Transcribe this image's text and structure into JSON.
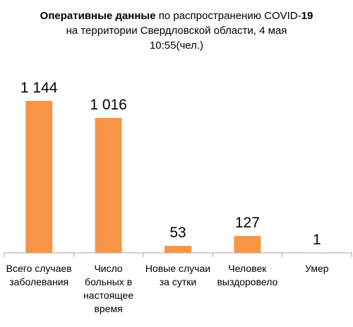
{
  "chart_data": {
    "type": "bar",
    "title": {
      "bold_part": "Оперативные данные",
      "part2": " по распространению COVID-",
      "bold_number": "19",
      "line2": "на территории Свердловской области, 4 мая",
      "line3": "10:55(чел.)"
    },
    "categories": [
      "Всего случаев заболевания",
      "Число больных в настоящее время",
      "Новые случаи за сутки",
      "Человек выздоровело",
      "Умер"
    ],
    "values": [
      1144,
      1016,
      53,
      127,
      1
    ],
    "data_labels": [
      "1 144",
      "1 016",
      "53",
      "127",
      "1"
    ],
    "ylim": [
      0,
      1250
    ],
    "grid": false,
    "legend": "none",
    "bar_color": "#F79646",
    "axis_color": "#A6A6A6"
  }
}
